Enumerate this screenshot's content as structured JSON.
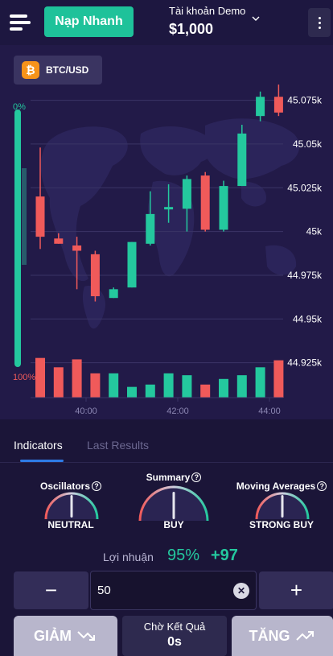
{
  "header": {
    "deposit_label": "Nạp Nhanh",
    "account_label": "Tài khoản Demo",
    "balance": "$1,000"
  },
  "chart": {
    "pair": "BTC/USD",
    "coin_symbol": "₿",
    "sentiment_top": "0%",
    "sentiment_bottom": "100%",
    "colors": {
      "up": "#24c89e",
      "down": "#f05a5a",
      "grid": "#3b3466"
    }
  },
  "chart_data": {
    "type": "candlestick",
    "symbol": "BTC/USD",
    "y_ticks": [
      "45.075k",
      "45.05k",
      "45.025k",
      "45k",
      "44.975k",
      "44.95k",
      "44.925k"
    ],
    "y_tick_values": [
      45075,
      45050,
      45025,
      45000,
      44975,
      44950,
      44925
    ],
    "ylim": [
      44917,
      45090
    ],
    "x_ticks": [
      "40:00",
      "42:00",
      "44:00"
    ],
    "x_tick_index": [
      2.5,
      7.5,
      12.5
    ],
    "candles": [
      {
        "o": 45020,
        "h": 45048,
        "l": 44990,
        "c": 44997
      },
      {
        "o": 44996,
        "h": 44999,
        "l": 44993,
        "c": 44993
      },
      {
        "o": 44992,
        "h": 44997,
        "l": 44967,
        "c": 44989
      },
      {
        "o": 44987,
        "h": 44989,
        "l": 44960,
        "c": 44963
      },
      {
        "o": 44962,
        "h": 44968,
        "l": 44962,
        "c": 44967
      },
      {
        "o": 44968,
        "h": 44994,
        "l": 44968,
        "c": 44994
      },
      {
        "o": 44993,
        "h": 45023,
        "l": 44992,
        "c": 45010
      },
      {
        "o": 45013,
        "h": 45027,
        "l": 45005,
        "c": 45014
      },
      {
        "o": 45013,
        "h": 45032,
        "l": 45000,
        "c": 45030
      },
      {
        "o": 45032,
        "h": 45034,
        "l": 45000,
        "c": 45001
      },
      {
        "o": 45001,
        "h": 45029,
        "l": 45000,
        "c": 45026
      },
      {
        "o": 45026,
        "h": 45061,
        "l": 45026,
        "c": 45056
      },
      {
        "o": 45066,
        "h": 45080,
        "l": 45063,
        "c": 45077
      },
      {
        "o": 45077,
        "h": 45084,
        "l": 45066,
        "c": 45068
      }
    ],
    "volume": [
      {
        "v": 0.85,
        "dir": "down"
      },
      {
        "v": 0.65,
        "dir": "down"
      },
      {
        "v": 0.82,
        "dir": "down"
      },
      {
        "v": 0.52,
        "dir": "down"
      },
      {
        "v": 0.52,
        "dir": "up"
      },
      {
        "v": 0.23,
        "dir": "up"
      },
      {
        "v": 0.28,
        "dir": "up"
      },
      {
        "v": 0.52,
        "dir": "up"
      },
      {
        "v": 0.48,
        "dir": "up"
      },
      {
        "v": 0.28,
        "dir": "down"
      },
      {
        "v": 0.4,
        "dir": "up"
      },
      {
        "v": 0.48,
        "dir": "up"
      },
      {
        "v": 0.65,
        "dir": "up"
      },
      {
        "v": 0.8,
        "dir": "down"
      }
    ],
    "sentiment": {
      "buy_pct": 0,
      "sell_pct": 100
    }
  },
  "tabs": [
    {
      "label": "Indicators"
    },
    {
      "label": "Last Results"
    }
  ],
  "indicators": [
    {
      "title": "Oscillators",
      "value": "NEUTRAL",
      "needle": 0.5
    },
    {
      "title": "Summary",
      "value": "BUY",
      "needle": 0.5
    },
    {
      "title": "Moving Averages",
      "value": "STRONG BUY",
      "needle": 0.5
    }
  ],
  "profit": {
    "label": "Lợi nhuận",
    "percent": "95%",
    "amount": "+97"
  },
  "amount": {
    "value": "50",
    "minus": "−",
    "plus": "+",
    "clear": "✕"
  },
  "actions": {
    "down_label": "GIẢM",
    "up_label": "TĂNG",
    "wait_label": "Chờ Kết Quả",
    "wait_time": "0s"
  }
}
